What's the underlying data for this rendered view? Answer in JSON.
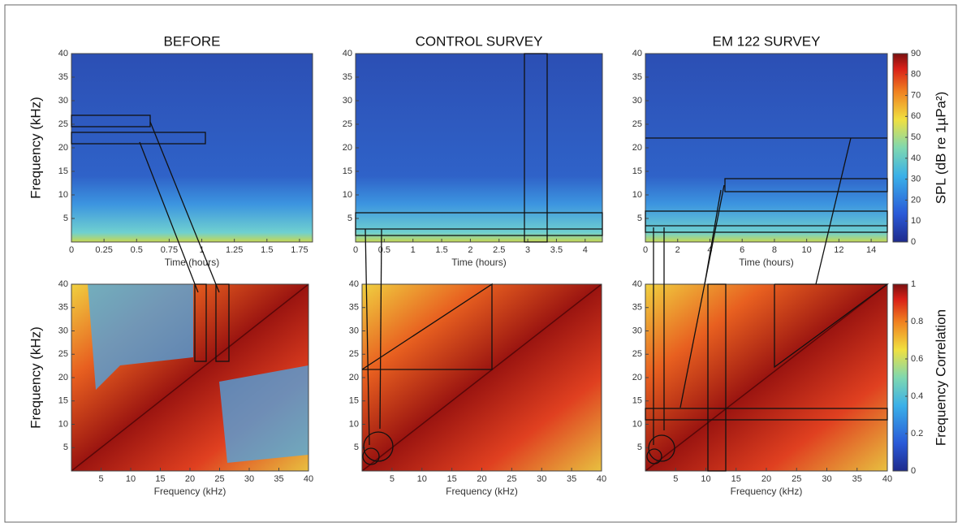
{
  "chart_data": [
    {
      "type": "heatmap",
      "title": "BEFORE",
      "xlabel": "Time (hours)",
      "ylabel": "Frequency (kHz)",
      "xlim": [
        0,
        1.85
      ],
      "xticks": [
        0,
        0.25,
        0.5,
        0.75,
        1,
        1.25,
        1.5,
        1.75
      ],
      "ylim": [
        0,
        40
      ],
      "yticks": [
        5,
        10,
        15,
        20,
        25,
        30,
        35,
        40
      ]
    },
    {
      "type": "heatmap",
      "title": "CONTROL SURVEY",
      "xlabel": "Time (hours)",
      "xlim": [
        0,
        4.3
      ],
      "xticks": [
        0,
        0.5,
        1,
        1.5,
        2,
        2.5,
        3,
        3.5,
        4
      ],
      "ylim": [
        0,
        40
      ],
      "yticks": [
        5,
        10,
        15,
        20,
        25,
        30,
        35,
        40
      ]
    },
    {
      "type": "heatmap",
      "title": "EM 122 SURVEY",
      "xlabel": "Time (hours)",
      "xlim": [
        0,
        15
      ],
      "xticks": [
        0,
        2,
        4,
        6,
        8,
        10,
        12,
        14
      ],
      "ylim": [
        0,
        40
      ],
      "yticks": [
        5,
        10,
        15,
        20,
        25,
        30,
        35,
        40
      ]
    },
    {
      "type": "heatmap",
      "xlabel": "Frequency (kHz)",
      "ylabel": "Frequency (kHz)",
      "xlim": [
        0,
        40
      ],
      "xticks": [
        5,
        10,
        15,
        20,
        25,
        30,
        35,
        40
      ],
      "ylim": [
        0,
        40
      ],
      "yticks": [
        5,
        10,
        15,
        20,
        25,
        30,
        35,
        40
      ]
    },
    {
      "type": "heatmap",
      "xlabel": "Frequency (kHz)",
      "xlim": [
        0,
        40
      ],
      "xticks": [
        5,
        10,
        15,
        20,
        25,
        30,
        35,
        40
      ],
      "ylim": [
        0,
        40
      ],
      "yticks": [
        5,
        10,
        15,
        20,
        25,
        30,
        35,
        40
      ]
    },
    {
      "type": "heatmap",
      "xlabel": "Frequency (kHz)",
      "xlim": [
        0,
        40
      ],
      "xticks": [
        5,
        10,
        15,
        20,
        25,
        30,
        35,
        40
      ],
      "ylim": [
        0,
        40
      ],
      "yticks": [
        5,
        10,
        15,
        20,
        25,
        30,
        35,
        40
      ]
    },
    {
      "type": "colorbar",
      "label": "SPL (dB re 1µPa²)",
      "ylim": [
        0,
        90
      ],
      "yticks": [
        0,
        10,
        20,
        30,
        40,
        50,
        60,
        70,
        80,
        90
      ]
    },
    {
      "type": "colorbar",
      "label": "Frequency Correlation",
      "ylim": [
        0,
        1
      ],
      "yticks": [
        0,
        0.2,
        0.4,
        0.6,
        0.8,
        1
      ]
    }
  ]
}
